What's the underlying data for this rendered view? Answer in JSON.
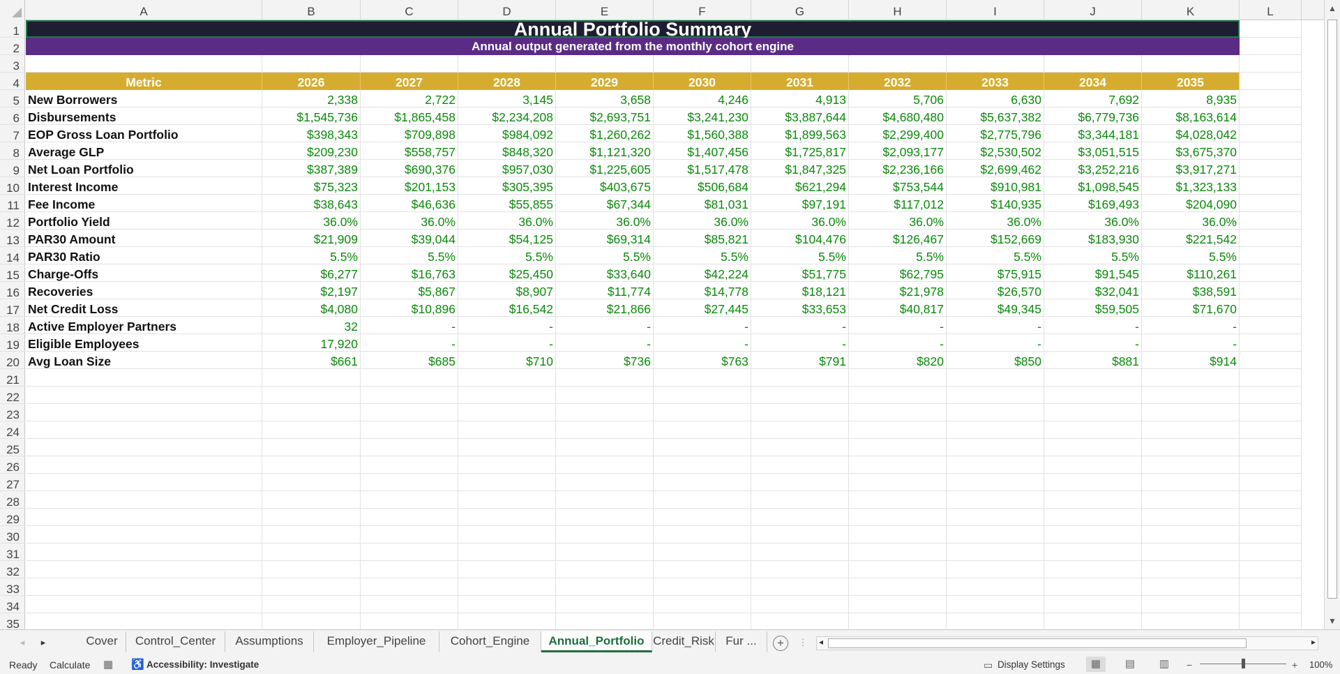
{
  "columns": [
    "A",
    "B",
    "C",
    "D",
    "E",
    "F",
    "G",
    "H",
    "I",
    "J",
    "K",
    "L"
  ],
  "rows": [
    "1",
    "2",
    "3",
    "4",
    "5",
    "6",
    "7",
    "8",
    "9",
    "10",
    "11",
    "12",
    "13",
    "14",
    "15",
    "16",
    "17",
    "18",
    "19",
    "20",
    "21",
    "22",
    "23",
    "24",
    "25",
    "26",
    "27",
    "28",
    "29",
    "30",
    "31",
    "32",
    "33",
    "34",
    "35"
  ],
  "sheet": {
    "title": "Annual Portfolio Summary",
    "subtitle": "Annual output generated from the monthly cohort engine",
    "header_label": "Metric",
    "years": [
      "2026",
      "2027",
      "2028",
      "2029",
      "2030",
      "2031",
      "2032",
      "2033",
      "2034",
      "2035"
    ],
    "metrics": [
      {
        "label": "New Borrowers",
        "values": [
          "2,338",
          "2,722",
          "3,145",
          "3,658",
          "4,246",
          "4,913",
          "5,706",
          "6,630",
          "7,692",
          "8,935"
        ]
      },
      {
        "label": "Disbursements",
        "values": [
          "$1,545,736",
          "$1,865,458",
          "$2,234,208",
          "$2,693,751",
          "$3,241,230",
          "$3,887,644",
          "$4,680,480",
          "$5,637,382",
          "$6,779,736",
          "$8,163,614"
        ]
      },
      {
        "label": "EOP Gross Loan Portfolio",
        "values": [
          "$398,343",
          "$709,898",
          "$984,092",
          "$1,260,262",
          "$1,560,388",
          "$1,899,563",
          "$2,299,400",
          "$2,775,796",
          "$3,344,181",
          "$4,028,042"
        ]
      },
      {
        "label": "Average GLP",
        "values": [
          "$209,230",
          "$558,757",
          "$848,320",
          "$1,121,320",
          "$1,407,456",
          "$1,725,817",
          "$2,093,177",
          "$2,530,502",
          "$3,051,515",
          "$3,675,370"
        ]
      },
      {
        "label": "Net Loan Portfolio",
        "values": [
          "$387,389",
          "$690,376",
          "$957,030",
          "$1,225,605",
          "$1,517,478",
          "$1,847,325",
          "$2,236,166",
          "$2,699,462",
          "$3,252,216",
          "$3,917,271"
        ]
      },
      {
        "label": "Interest Income",
        "values": [
          "$75,323",
          "$201,153",
          "$305,395",
          "$403,675",
          "$506,684",
          "$621,294",
          "$753,544",
          "$910,981",
          "$1,098,545",
          "$1,323,133"
        ]
      },
      {
        "label": "Fee Income",
        "values": [
          "$38,643",
          "$46,636",
          "$55,855",
          "$67,344",
          "$81,031",
          "$97,191",
          "$117,012",
          "$140,935",
          "$169,493",
          "$204,090"
        ]
      },
      {
        "label": "Portfolio Yield",
        "values": [
          "36.0%",
          "36.0%",
          "36.0%",
          "36.0%",
          "36.0%",
          "36.0%",
          "36.0%",
          "36.0%",
          "36.0%",
          "36.0%"
        ]
      },
      {
        "label": "PAR30 Amount",
        "values": [
          "$21,909",
          "$39,044",
          "$54,125",
          "$69,314",
          "$85,821",
          "$104,476",
          "$126,467",
          "$152,669",
          "$183,930",
          "$221,542"
        ]
      },
      {
        "label": "PAR30 Ratio",
        "values": [
          "5.5%",
          "5.5%",
          "5.5%",
          "5.5%",
          "5.5%",
          "5.5%",
          "5.5%",
          "5.5%",
          "5.5%",
          "5.5%"
        ]
      },
      {
        "label": "Charge-Offs",
        "values": [
          "$6,277",
          "$16,763",
          "$25,450",
          "$33,640",
          "$42,224",
          "$51,775",
          "$62,795",
          "$75,915",
          "$91,545",
          "$110,261"
        ]
      },
      {
        "label": "Recoveries",
        "values": [
          "$2,197",
          "$5,867",
          "$8,907",
          "$11,774",
          "$14,778",
          "$18,121",
          "$21,978",
          "$26,570",
          "$32,041",
          "$38,591"
        ]
      },
      {
        "label": "Net Credit Loss",
        "values": [
          "$4,080",
          "$10,896",
          "$16,542",
          "$21,866",
          "$27,445",
          "$33,653",
          "$40,817",
          "$49,345",
          "$59,505",
          "$71,670"
        ]
      },
      {
        "label": "Active Employer Partners",
        "values": [
          "32",
          "-",
          "-",
          "-",
          "-",
          "-",
          "-",
          "-",
          "-",
          "-"
        ]
      },
      {
        "label": "Eligible Employees",
        "values": [
          "17,920",
          "-",
          "-",
          "-",
          "-",
          "-",
          "-",
          "-",
          "-",
          "-"
        ]
      },
      {
        "label": "Avg Loan Size",
        "values": [
          "$661",
          "$685",
          "$710",
          "$736",
          "$763",
          "$791",
          "$820",
          "$850",
          "$881",
          "$914"
        ]
      }
    ]
  },
  "tabs": [
    "Cover",
    "Control_Center",
    "Assumptions",
    "Employer_Pipeline",
    "Cohort_Engine",
    "Annual_Portfolio",
    "Credit_Risk",
    "Fur ..."
  ],
  "active_tab": "Annual_Portfolio",
  "status": {
    "ready": "Ready",
    "calculate": "Calculate",
    "accessibility": "Accessibility: Investigate",
    "display_settings": "Display Settings",
    "zoom": "100%"
  },
  "colors": {
    "title_bg": "#201c32",
    "subtitle_bg": "#5b2c86",
    "header_bg": "#d6ac2f",
    "value_text": "#0a8a0a",
    "active_tab": "#1a6e3c"
  },
  "icons": [
    "corner-select-icon",
    "scroll-up-icon",
    "scroll-down-icon",
    "tab-next-icon",
    "tab-prev-icon",
    "add-sheet-icon",
    "more-tabs-icon",
    "hscroll-left-icon",
    "hscroll-right-icon",
    "macro-icon",
    "accessibility-icon",
    "display-settings-icon",
    "normal-view-icon",
    "page-layout-icon",
    "page-break-icon"
  ]
}
